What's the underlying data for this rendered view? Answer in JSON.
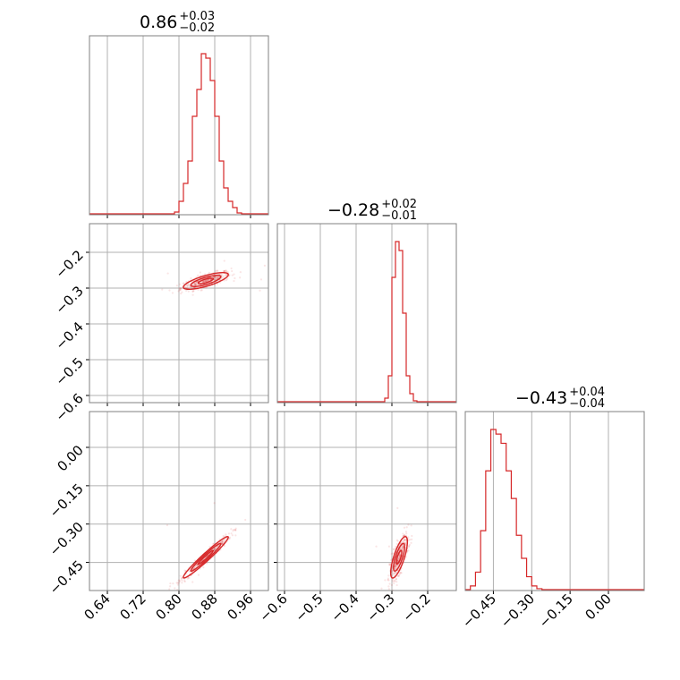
{
  "chart_data": {
    "type": "corner",
    "parameters": [
      "p0",
      "p1",
      "p2"
    ],
    "color": "#d62728",
    "titles": [
      {
        "value": "0.86",
        "plus": "+0.03",
        "minus": "−0.02"
      },
      {
        "value": "−0.28",
        "plus": "+0.02",
        "minus": "−0.01"
      },
      {
        "value": "−0.43",
        "plus": "+0.04",
        "minus": "−0.04"
      }
    ],
    "ranges": [
      [
        0.6,
        1.0
      ],
      [
        -0.62,
        -0.12
      ],
      [
        -0.56,
        0.14
      ]
    ],
    "ticks": [
      {
        "values": [
          0.64,
          0.72,
          0.8,
          0.88,
          0.96
        ],
        "labels": [
          "0.64",
          "0.72",
          "0.80",
          "0.88",
          "0.96"
        ]
      },
      {
        "values": [
          -0.6,
          -0.5,
          -0.4,
          -0.3,
          -0.2
        ],
        "labels": [
          "−0.6",
          "−0.5",
          "−0.4",
          "−0.3",
          "−0.2"
        ]
      },
      {
        "values": [
          -0.45,
          -0.3,
          -0.15,
          0.0
        ],
        "labels": [
          "−0.45",
          "−0.30",
          "−0.15",
          "0.00"
        ]
      }
    ],
    "histograms": [
      {
        "param": 0,
        "bin_edges": [
          0.79,
          0.8,
          0.81,
          0.82,
          0.83,
          0.84,
          0.85,
          0.86,
          0.87,
          0.88,
          0.89,
          0.9,
          0.91,
          0.92,
          0.93,
          0.94
        ],
        "counts": [
          3,
          15,
          35,
          60,
          110,
          140,
          180,
          175,
          150,
          110,
          60,
          30,
          15,
          8,
          2
        ]
      },
      {
        "param": 1,
        "bin_edges": [
          -0.32,
          -0.31,
          -0.3,
          -0.29,
          -0.28,
          -0.27,
          -0.26,
          -0.25,
          -0.24,
          -0.23
        ],
        "counts": [
          5,
          30,
          140,
          180,
          170,
          100,
          30,
          10,
          2
        ]
      },
      {
        "param": 2,
        "bin_edges": [
          -0.54,
          -0.52,
          -0.5,
          -0.48,
          -0.46,
          -0.44,
          -0.42,
          -0.4,
          -0.38,
          -0.36,
          -0.34,
          -0.32,
          -0.3,
          -0.28,
          -0.26
        ],
        "counts": [
          5,
          20,
          65,
          130,
          175,
          170,
          160,
          130,
          100,
          60,
          35,
          15,
          5,
          2
        ]
      }
    ],
    "pairs": [
      {
        "x": 0,
        "y": 1,
        "center": [
          0.86,
          -0.28
        ],
        "sd": [
          0.028,
          0.013
        ],
        "corr": 0.75
      },
      {
        "x": 0,
        "y": 2,
        "center": [
          0.86,
          -0.43
        ],
        "sd": [
          0.028,
          0.045
        ],
        "corr": 0.97
      },
      {
        "x": 1,
        "y": 2,
        "center": [
          -0.28,
          -0.43
        ],
        "sd": [
          0.013,
          0.045
        ],
        "corr": 0.75
      }
    ]
  }
}
